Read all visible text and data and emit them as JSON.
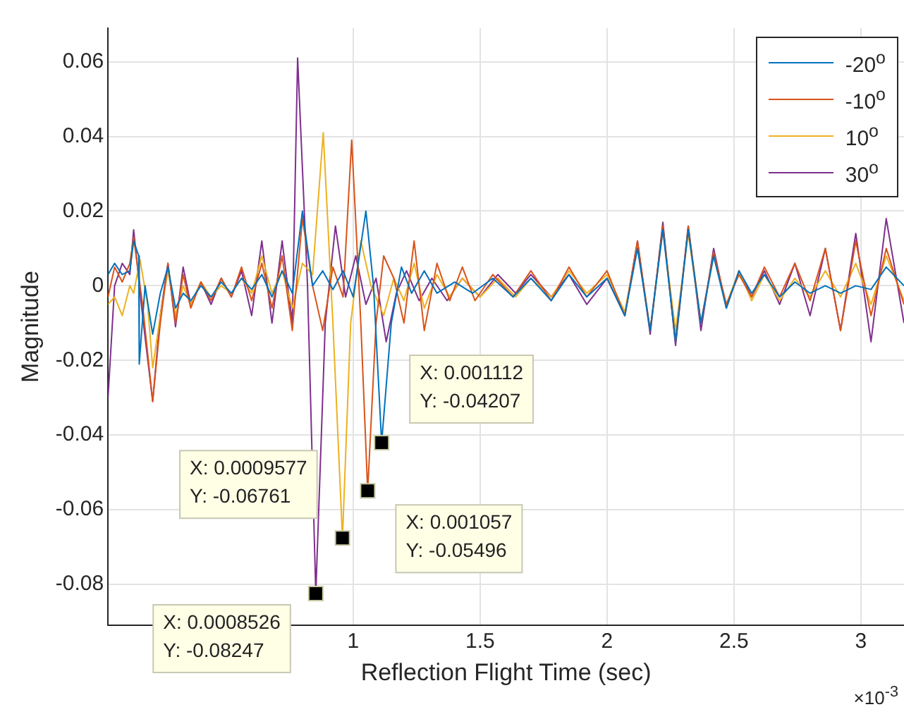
{
  "chart_data": {
    "type": "line",
    "xlabel": "Reflection Flight Time (sec)",
    "ylabel": "Magnitude",
    "xlim": [
      0.034,
      3.17
    ],
    "ylim": [
      -0.091,
      0.069
    ],
    "xticks": [
      1,
      1.5,
      2,
      2.5,
      3
    ],
    "yticks": [
      -0.08,
      -0.06,
      -0.04,
      -0.02,
      0,
      0.02,
      0.04,
      0.06
    ],
    "grid": true,
    "legend": "top right",
    "marker": "none",
    "line_style": "solid",
    "annotations": [
      "×10$^{-3}$",
      {
        "text": "X: 0.0008526\nY: -0.08247",
        "x": 0.8526,
        "y": -0.08247
      },
      {
        "text": "X: 0.0009577\nY: -0.06761",
        "x": 0.9577,
        "y": -0.06761
      },
      {
        "text": "X: 0.001057\nY: -0.05496",
        "x": 1.057,
        "y": -0.05496
      },
      {
        "text": "X: 0.001112\nY: -0.04207",
        "x": 1.112,
        "y": -0.04207
      }
    ],
    "series": [
      {
        "name": "-20$^{o}$",
        "color": "#0072bd",
        "x": [
          0.034,
          0.06,
          0.09,
          0.12,
          0.135,
          0.155,
          0.157,
          0.18,
          0.21,
          0.24,
          0.27,
          0.3,
          0.33,
          0.36,
          0.4,
          0.44,
          0.48,
          0.52,
          0.56,
          0.6,
          0.64,
          0.68,
          0.72,
          0.76,
          0.8,
          0.84,
          0.88,
          0.92,
          0.96,
          1.0,
          1.05,
          1.08,
          1.112,
          1.15,
          1.19,
          1.23,
          1.28,
          1.33,
          1.4,
          1.47,
          1.55,
          1.63,
          1.7,
          1.78,
          1.85,
          1.92,
          2.0,
          2.07,
          2.12,
          2.17,
          2.22,
          2.27,
          2.32,
          2.37,
          2.42,
          2.47,
          2.52,
          2.57,
          2.62,
          2.68,
          2.74,
          2.8,
          2.86,
          2.92,
          2.98,
          3.04,
          3.1,
          3.17
        ],
        "values": [
          0.003,
          0.006,
          0.003,
          0.004,
          0.012,
          0.008,
          -0.021,
          0.0,
          -0.013,
          -0.002,
          0.005,
          -0.006,
          -0.002,
          -0.004,
          0.0,
          -0.003,
          0.001,
          -0.002,
          0.002,
          -0.001,
          0.003,
          -0.003,
          0.004,
          -0.002,
          0.02,
          0.0,
          0.004,
          -0.001,
          0.004,
          -0.003,
          0.02,
          0.0,
          -0.04207,
          -0.01,
          0.005,
          -0.002,
          0.004,
          -0.002,
          0.001,
          -0.002,
          0.002,
          -0.003,
          0.002,
          -0.004,
          0.003,
          -0.003,
          0.002,
          -0.008,
          0.01,
          -0.012,
          0.015,
          -0.015,
          0.015,
          -0.01,
          0.008,
          -0.006,
          0.004,
          -0.002,
          0.003,
          -0.003,
          0.001,
          -0.002,
          0.0,
          -0.002,
          0.0,
          -0.001,
          0.005,
          0.0
        ]
      },
      {
        "name": "-10$^{o}$",
        "color": "#d95319",
        "x": [
          0.034,
          0.06,
          0.09,
          0.12,
          0.135,
          0.17,
          0.21,
          0.24,
          0.27,
          0.3,
          0.33,
          0.36,
          0.4,
          0.44,
          0.48,
          0.52,
          0.56,
          0.6,
          0.64,
          0.68,
          0.72,
          0.76,
          0.8,
          0.84,
          0.88,
          0.92,
          0.96,
          0.994,
          1.03,
          1.057,
          1.09,
          1.12,
          1.16,
          1.2,
          1.24,
          1.28,
          1.33,
          1.38,
          1.43,
          1.48,
          1.55,
          1.63,
          1.7,
          1.78,
          1.85,
          1.92,
          2.0,
          2.07,
          2.12,
          2.17,
          2.22,
          2.27,
          2.32,
          2.37,
          2.42,
          2.47,
          2.52,
          2.57,
          2.62,
          2.68,
          2.74,
          2.8,
          2.86,
          2.92,
          2.98,
          3.04,
          3.1,
          3.17
        ],
        "values": [
          -0.003,
          0.005,
          0.001,
          0.006,
          0.013,
          -0.005,
          -0.031,
          -0.01,
          0.006,
          -0.01,
          0.003,
          -0.006,
          0.001,
          -0.004,
          0.002,
          -0.003,
          0.005,
          -0.004,
          0.006,
          -0.006,
          0.008,
          -0.012,
          0.018,
          0.0,
          -0.012,
          0.005,
          -0.003,
          0.039,
          -0.01,
          -0.05496,
          -0.01,
          0.008,
          0.002,
          -0.01,
          0.012,
          -0.012,
          0.006,
          -0.004,
          0.005,
          -0.004,
          0.003,
          -0.003,
          0.004,
          -0.004,
          0.005,
          -0.003,
          0.004,
          -0.008,
          0.012,
          -0.012,
          0.016,
          -0.015,
          0.016,
          -0.01,
          0.009,
          -0.005,
          0.003,
          -0.003,
          0.005,
          -0.003,
          0.006,
          -0.004,
          0.01,
          -0.012,
          0.012,
          -0.008,
          0.01,
          -0.005
        ]
      },
      {
        "name": "10$^{o}$",
        "color": "#edb120",
        "x": [
          0.034,
          0.06,
          0.09,
          0.12,
          0.135,
          0.16,
          0.19,
          0.21,
          0.24,
          0.27,
          0.3,
          0.33,
          0.36,
          0.4,
          0.44,
          0.48,
          0.52,
          0.56,
          0.6,
          0.64,
          0.68,
          0.72,
          0.76,
          0.8,
          0.84,
          0.882,
          0.92,
          0.9577,
          0.99,
          1.03,
          1.07,
          1.12,
          1.16,
          1.2,
          1.24,
          1.28,
          1.33,
          1.38,
          1.43,
          1.5,
          1.57,
          1.64,
          1.7,
          1.78,
          1.85,
          1.92,
          2.0,
          2.07,
          2.12,
          2.17,
          2.22,
          2.27,
          2.32,
          2.37,
          2.42,
          2.47,
          2.52,
          2.57,
          2.62,
          2.68,
          2.74,
          2.8,
          2.86,
          2.92,
          2.98,
          3.04,
          3.1,
          3.17
        ],
        "values": [
          -0.005,
          -0.003,
          -0.008,
          0.0,
          -0.002,
          0.007,
          -0.005,
          -0.022,
          -0.008,
          0.004,
          -0.008,
          0.0,
          -0.005,
          0.001,
          -0.003,
          0.0,
          -0.002,
          0.002,
          -0.002,
          0.008,
          -0.002,
          0.004,
          -0.006,
          0.006,
          0.003,
          0.041,
          -0.01,
          -0.06761,
          -0.01,
          0.012,
          0.0,
          -0.008,
          0.002,
          -0.004,
          0.006,
          -0.006,
          0.003,
          -0.003,
          0.002,
          -0.003,
          0.002,
          -0.003,
          0.002,
          -0.003,
          0.004,
          -0.002,
          0.003,
          -0.007,
          0.011,
          -0.012,
          0.015,
          -0.012,
          0.014,
          -0.01,
          0.008,
          -0.005,
          0.004,
          -0.004,
          0.003,
          -0.004,
          0.002,
          -0.003,
          0.004,
          -0.003,
          0.006,
          -0.005,
          0.008,
          -0.004
        ]
      },
      {
        "name": "30$^{o}$",
        "color": "#7e2f8e",
        "x": [
          0.034,
          0.06,
          0.09,
          0.12,
          0.135,
          0.17,
          0.21,
          0.24,
          0.27,
          0.3,
          0.33,
          0.36,
          0.4,
          0.44,
          0.48,
          0.52,
          0.56,
          0.6,
          0.64,
          0.68,
          0.72,
          0.76,
          0.781,
          0.82,
          0.8526,
          0.89,
          0.93,
          0.97,
          1.01,
          1.05,
          1.09,
          1.13,
          1.17,
          1.21,
          1.26,
          1.31,
          1.37,
          1.43,
          1.5,
          1.57,
          1.64,
          1.7,
          1.78,
          1.85,
          1.92,
          2.0,
          2.07,
          2.12,
          2.17,
          2.22,
          2.27,
          2.32,
          2.37,
          2.42,
          2.47,
          2.52,
          2.57,
          2.62,
          2.68,
          2.74,
          2.8,
          2.86,
          2.92,
          2.98,
          3.04,
          3.1,
          3.17
        ],
        "values": [
          -0.03,
          0.0,
          0.006,
          0.003,
          0.015,
          -0.008,
          -0.031,
          -0.008,
          0.006,
          -0.011,
          0.005,
          -0.005,
          0.001,
          -0.005,
          0.002,
          -0.003,
          0.004,
          -0.008,
          0.012,
          -0.01,
          0.012,
          -0.01,
          0.061,
          0.0,
          -0.08247,
          -0.01,
          0.016,
          -0.003,
          0.008,
          -0.005,
          0.002,
          -0.015,
          -0.002,
          0.004,
          -0.004,
          0.002,
          -0.004,
          0.002,
          -0.003,
          0.003,
          -0.002,
          0.003,
          -0.003,
          0.003,
          -0.005,
          0.002,
          -0.008,
          0.012,
          -0.013,
          0.017,
          -0.016,
          0.016,
          -0.012,
          0.01,
          -0.006,
          0.004,
          -0.003,
          0.004,
          -0.005,
          0.006,
          -0.008,
          0.01,
          -0.012,
          0.014,
          -0.015,
          0.018,
          -0.01
        ]
      }
    ]
  }
}
